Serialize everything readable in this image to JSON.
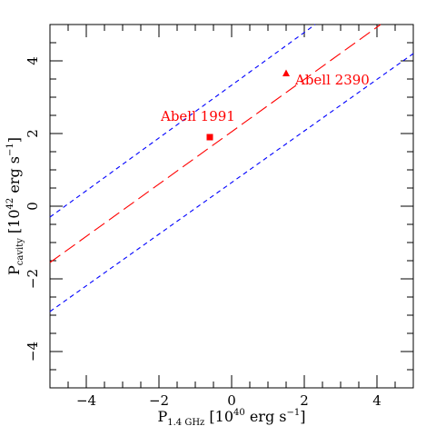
{
  "chart_data": {
    "type": "scatter",
    "title": "",
    "xlabel": {
      "main": "P",
      "sub": "1.4 GHz",
      "unit_open": " [10",
      "unit_exp": "40",
      "unit_close": " erg s",
      "unit_exp2": "−1",
      "unit_end": "]"
    },
    "ylabel": {
      "main": "P",
      "sub": "cavity",
      "unit_open": " [10",
      "unit_exp": "42",
      "unit_close": " erg s",
      "unit_exp2": "−1",
      "unit_end": "]"
    },
    "xlim": [
      -5,
      5
    ],
    "ylim": [
      -5,
      5
    ],
    "x_ticks": [
      -4,
      -2,
      0,
      2,
      4
    ],
    "x_tick_labels": [
      "−4",
      "−2",
      "0",
      "2",
      "4"
    ],
    "y_ticks": [
      -4,
      -2,
      0,
      2,
      4
    ],
    "y_tick_labels": [
      "−4",
      "−2",
      "0",
      "2",
      "4"
    ],
    "minor_step": 0.5,
    "grid": false,
    "lines": [
      {
        "style": "dashed-long",
        "color": "#ff0000",
        "x": [
          -5,
          4.1
        ],
        "y": [
          -1.55,
          5
        ]
      },
      {
        "style": "dashed-short",
        "color": "#0000ff",
        "x": [
          -5,
          2.3
        ],
        "y": [
          -0.3,
          5
        ]
      },
      {
        "style": "dashed-short",
        "color": "#0000ff",
        "x": [
          -5,
          5
        ],
        "y": [
          -2.9,
          4.2
        ]
      }
    ],
    "points": [
      {
        "label": "Abell 1991",
        "marker": "square",
        "color": "#ff0000",
        "x": -0.6,
        "y": 1.9,
        "label_x": -1.95,
        "label_y": 2.35
      },
      {
        "label": "Abell 2390",
        "marker": "triangle",
        "color": "#ff0000",
        "x": 1.5,
        "y": 3.65,
        "label_x": 1.75,
        "label_y": 3.35
      }
    ]
  }
}
